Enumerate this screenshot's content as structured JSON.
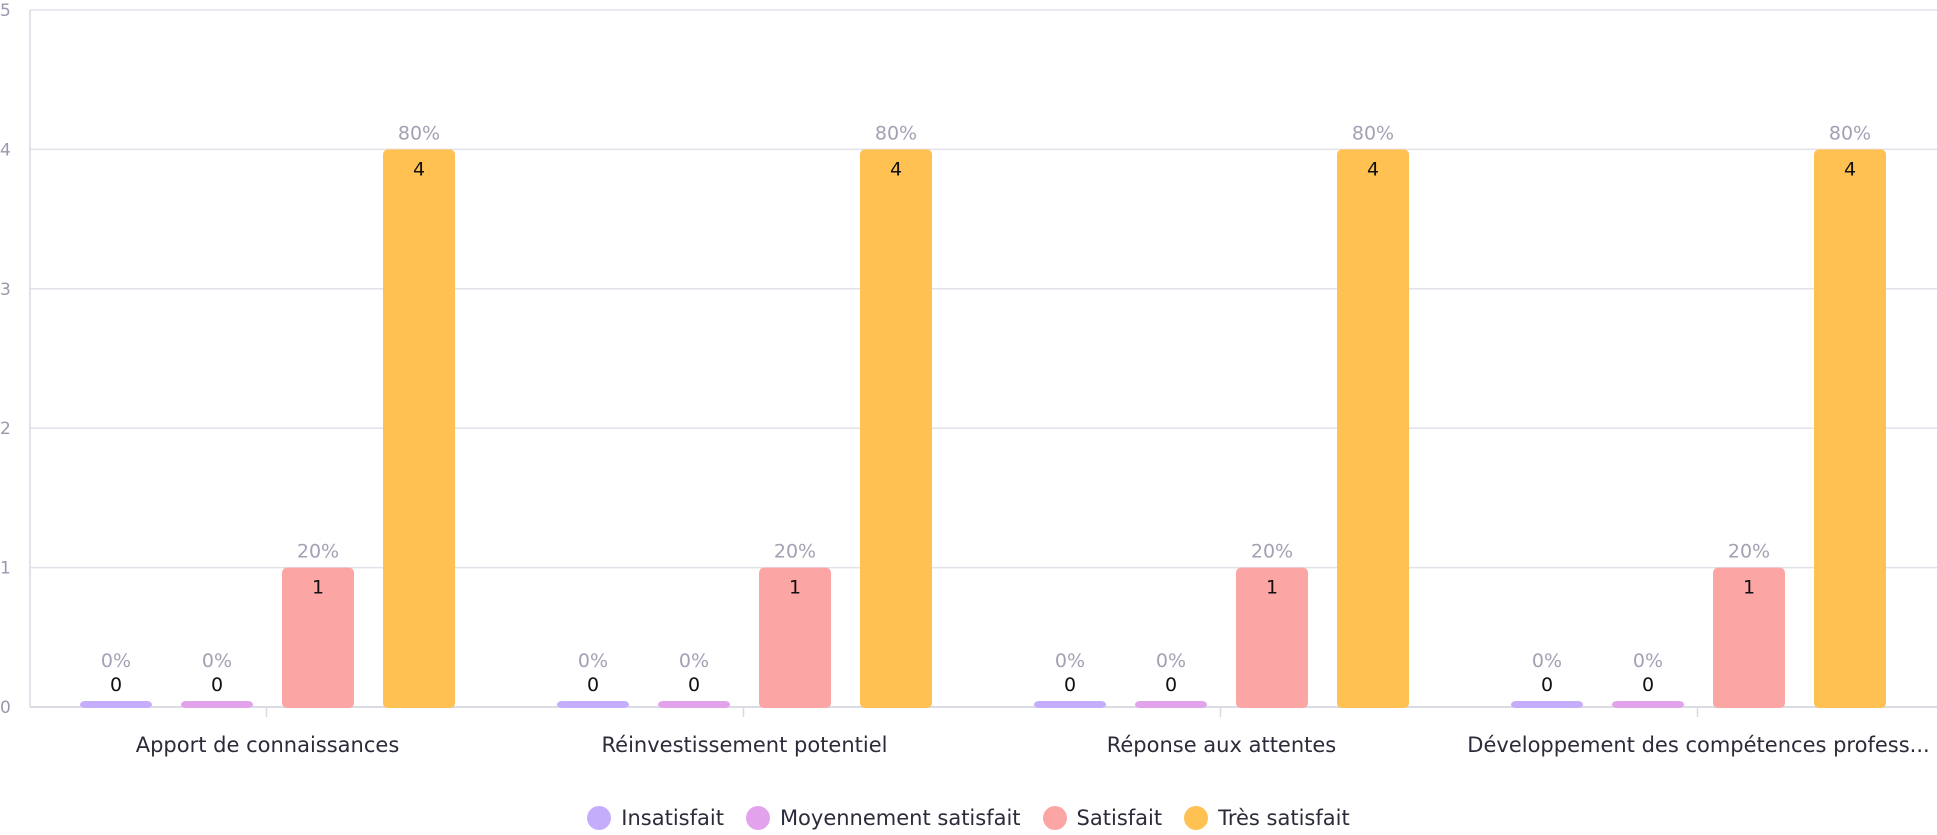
{
  "chart_data": {
    "type": "bar",
    "categories": [
      "Apport de connaissances",
      "Réinvestissement potentiel",
      "Réponse aux attentes",
      "Développement des compétences profess..."
    ],
    "series": [
      {
        "name": "Insatisfait",
        "color": "#c4aefb",
        "values": [
          0,
          0,
          0,
          0
        ],
        "percent_labels": [
          "0%",
          "0%",
          "0%",
          "0%"
        ]
      },
      {
        "name": "Moyennement satisfait",
        "color": "#e2a3ec",
        "values": [
          0,
          0,
          0,
          0
        ],
        "percent_labels": [
          "0%",
          "0%",
          "0%",
          "0%"
        ]
      },
      {
        "name": "Satisfait",
        "color": "#fca5a5",
        "values": [
          1,
          1,
          1,
          1
        ],
        "percent_labels": [
          "20%",
          "20%",
          "20%",
          "20%"
        ]
      },
      {
        "name": "Très satisfait",
        "color": "#fec152",
        "values": [
          4,
          4,
          4,
          4
        ],
        "percent_labels": [
          "80%",
          "80%",
          "80%",
          "80%"
        ]
      }
    ],
    "ylim": [
      0,
      5
    ],
    "yticks": [
      0,
      1,
      2,
      3,
      4,
      5
    ],
    "grid": true,
    "legend_position": "bottom-center"
  }
}
